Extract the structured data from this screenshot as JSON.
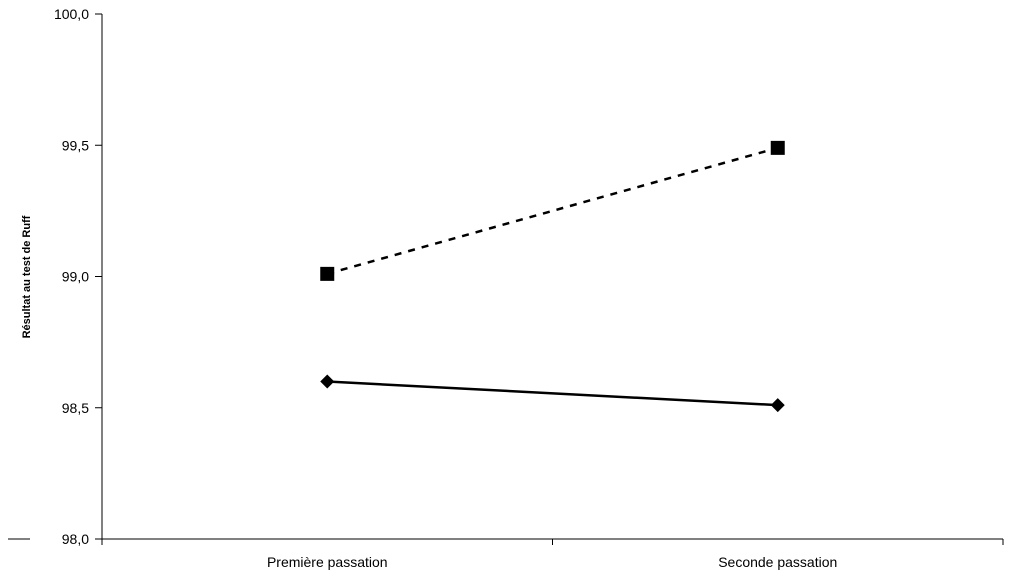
{
  "chart_data": {
    "type": "line",
    "title": "",
    "xlabel": "",
    "ylabel": "Résultat au test de Ruff",
    "categories": [
      "Première passation",
      "Seconde passation"
    ],
    "ylim": [
      98.0,
      100.0
    ],
    "yticks": [
      "98,0",
      "98,5",
      "99,0",
      "99,5",
      "100,0"
    ],
    "grid": false,
    "legend": "none",
    "series": [
      {
        "values": [
          98.6,
          98.51
        ],
        "marker": "diamond",
        "line_style": "solid",
        "color": "#000000"
      },
      {
        "values": [
          99.01,
          99.49
        ],
        "marker": "square",
        "line_style": "dashed",
        "color": "#000000"
      }
    ]
  }
}
